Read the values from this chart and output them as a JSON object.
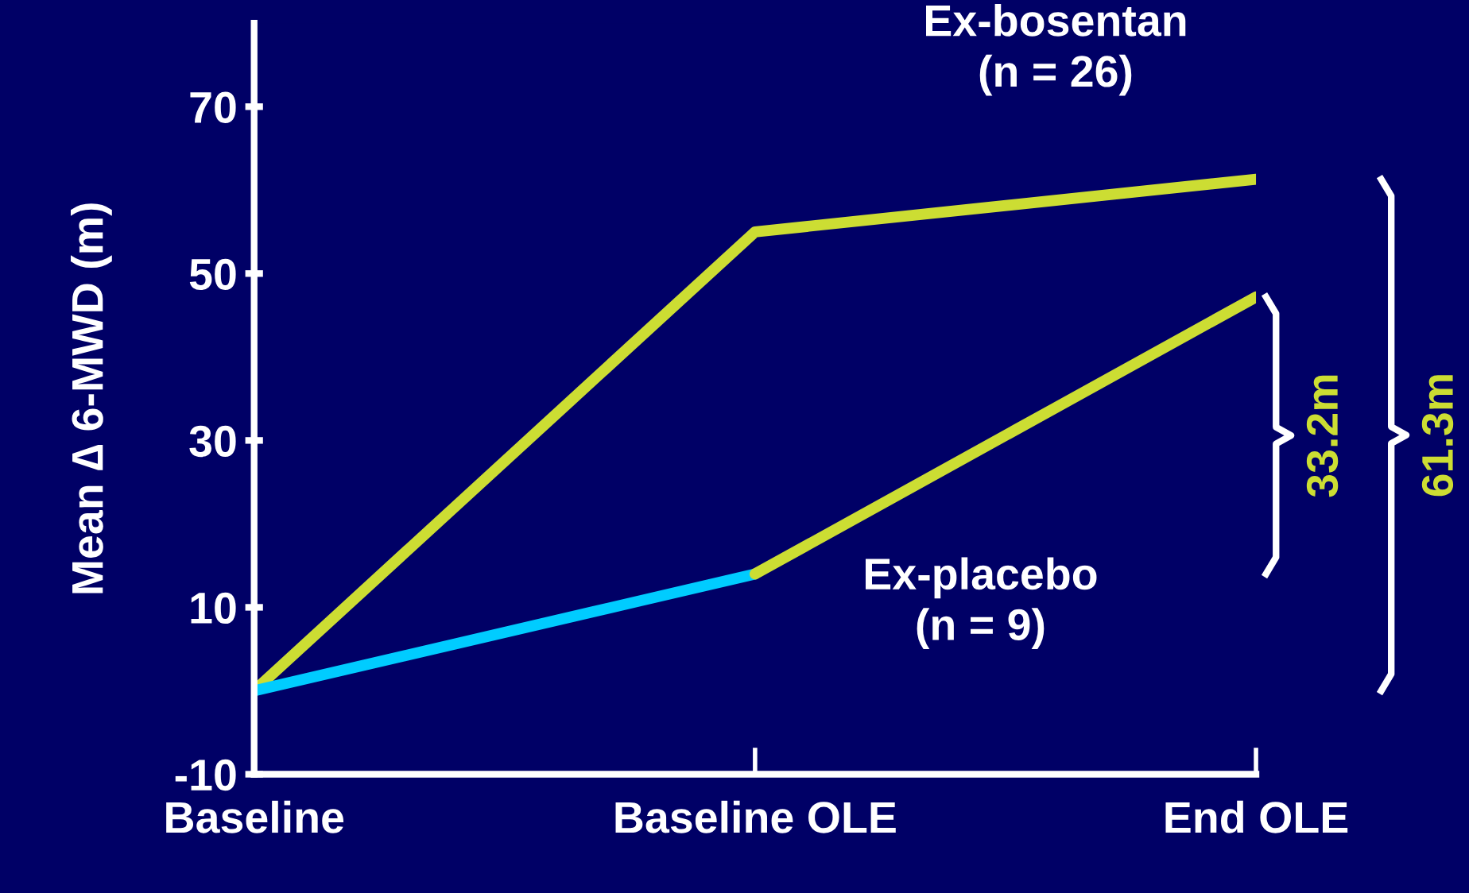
{
  "chart_data": {
    "type": "line",
    "ylabel": "Mean ∆ 6-MWD (m)",
    "categories": [
      "Baseline",
      "Baseline OLE",
      "End OLE"
    ],
    "series": [
      {
        "name": "Ex-bosentan\n(n = 26)",
        "color": "#ccdd33",
        "values": [
          0,
          55,
          61.3
        ]
      },
      {
        "name": "Ex-placebo\n(n = 9)",
        "color": "#00ccff",
        "values": [
          0,
          14,
          null
        ]
      },
      {
        "color": "#ccdd33",
        "values": [
          null,
          14,
          47.2
        ]
      }
    ],
    "ylim": [
      -10,
      80
    ],
    "yticks": [
      -10,
      10,
      30,
      50,
      70
    ],
    "grid": false,
    "marker": "none",
    "line_style": "solid",
    "annotations": [
      "33.2m",
      "61.3m"
    ]
  }
}
